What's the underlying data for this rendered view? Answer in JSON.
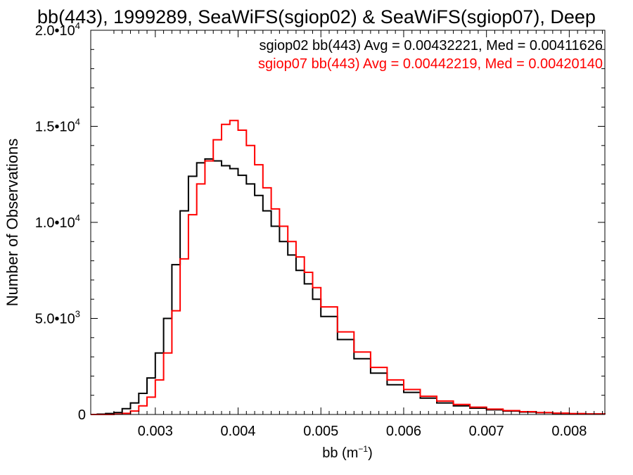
{
  "chart_data": {
    "type": "line",
    "title": "bb(443), 1999289, SeaWiFS(sgiop02) & SeaWiFS(sgiop07), Deep",
    "xlabel": "bb (m",
    "xlabel_sup": "−1",
    "xlabel_end": ")",
    "ylabel": "Number of Observations",
    "xlim": [
      0.00222,
      0.00843
    ],
    "ylim": [
      0,
      20000
    ],
    "x_ticks": [
      0.003,
      0.004,
      0.005,
      0.006,
      0.007,
      0.008
    ],
    "x_tick_labels": [
      "0.003",
      "0.004",
      "0.005",
      "0.006",
      "0.007",
      "0.008"
    ],
    "y_ticks": [
      {
        "value": 0,
        "mantissa": "0",
        "exp": ""
      },
      {
        "value": 5000,
        "mantissa": "5.0•10",
        "exp": "3"
      },
      {
        "value": 10000,
        "mantissa": "1.0•10",
        "exp": "4"
      },
      {
        "value": 15000,
        "mantissa": "1.5•10",
        "exp": "4"
      },
      {
        "value": 20000,
        "mantissa": "2.0•10",
        "exp": "4"
      }
    ],
    "grid": false,
    "legend_position": "top-right",
    "series": [
      {
        "name": "sgiop02 bb(443) Avg = 0.00432221, Med = 0.00411626",
        "color": "#000000",
        "x": [
          0.00222,
          0.0023,
          0.0024,
          0.0025,
          0.0026,
          0.0027,
          0.0028,
          0.0029,
          0.003,
          0.0031,
          0.0032,
          0.0033,
          0.0034,
          0.0035,
          0.0036,
          0.0037,
          0.0038,
          0.0039,
          0.004,
          0.0041,
          0.0042,
          0.0043,
          0.0044,
          0.0045,
          0.0046,
          0.0047,
          0.0048,
          0.0049,
          0.005,
          0.0052,
          0.0054,
          0.0056,
          0.0058,
          0.006,
          0.0062,
          0.0064,
          0.0066,
          0.0068,
          0.007,
          0.0072,
          0.0074,
          0.0076,
          0.0078,
          0.008,
          0.0082,
          0.00843
        ],
        "y": [
          0,
          20,
          50,
          100,
          300,
          600,
          1100,
          1900,
          3200,
          5000,
          7800,
          10600,
          12400,
          13100,
          13300,
          13200,
          12950,
          12800,
          12450,
          12000,
          11400,
          10600,
          9800,
          9000,
          8300,
          7500,
          6800,
          6000,
          5100,
          3900,
          2900,
          2150,
          1550,
          1150,
          850,
          600,
          450,
          330,
          240,
          180,
          130,
          90,
          60,
          40,
          25,
          10
        ]
      },
      {
        "name": "sgiop07 bb(443) Avg = 0.00442219, Med = 0.00420140",
        "color": "#ff0000",
        "x": [
          0.00222,
          0.0023,
          0.0024,
          0.0025,
          0.0026,
          0.0027,
          0.0028,
          0.0029,
          0.003,
          0.0031,
          0.0032,
          0.0033,
          0.0034,
          0.0035,
          0.0036,
          0.0037,
          0.0038,
          0.0039,
          0.004,
          0.0041,
          0.0042,
          0.0043,
          0.0044,
          0.0045,
          0.0046,
          0.0047,
          0.0048,
          0.0049,
          0.005,
          0.0052,
          0.0054,
          0.0056,
          0.0058,
          0.006,
          0.0062,
          0.0064,
          0.0066,
          0.0068,
          0.007,
          0.0072,
          0.0074,
          0.0076,
          0.0078,
          0.008,
          0.0082,
          0.00843
        ],
        "y": [
          0,
          0,
          0,
          20,
          60,
          180,
          450,
          900,
          1800,
          3200,
          5400,
          8100,
          10400,
          12000,
          13200,
          14300,
          15100,
          15300,
          14800,
          14000,
          13000,
          11800,
          10700,
          9800,
          9000,
          8200,
          7400,
          6600,
          5600,
          4300,
          3250,
          2450,
          1800,
          1300,
          950,
          700,
          520,
          380,
          280,
          200,
          145,
          100,
          70,
          45,
          28,
          12
        ]
      }
    ]
  }
}
